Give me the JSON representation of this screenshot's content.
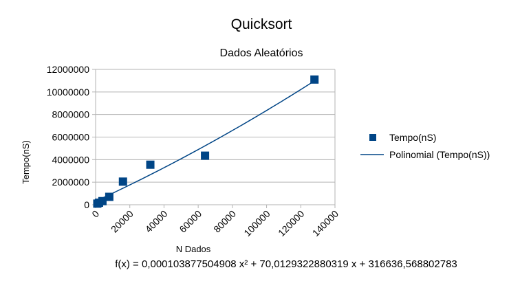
{
  "chart_data": {
    "type": "scatter",
    "title": "Quicksort",
    "subtitle": "Dados Aleatórios",
    "xlabel": "N Dados",
    "ylabel": "Tempo(nS)",
    "xlim": [
      0,
      140000
    ],
    "ylim": [
      0,
      12000000
    ],
    "x_ticks": [
      0,
      20000,
      40000,
      60000,
      80000,
      100000,
      120000,
      140000
    ],
    "y_ticks": [
      0,
      2000000,
      4000000,
      6000000,
      8000000,
      10000000,
      12000000
    ],
    "grid": "horizontal",
    "legend_position": "right",
    "series": [
      {
        "name": "Tempo(nS)",
        "marker": "square",
        "color": "#004586",
        "points": [
          {
            "x": 1000,
            "y": 100000
          },
          {
            "x": 2000,
            "y": 180000
          },
          {
            "x": 4000,
            "y": 320000
          },
          {
            "x": 8000,
            "y": 700000
          },
          {
            "x": 16000,
            "y": 2050000
          },
          {
            "x": 32000,
            "y": 3550000
          },
          {
            "x": 64000,
            "y": 4350000
          },
          {
            "x": 128000,
            "y": 11100000
          }
        ]
      }
    ],
    "trendline": {
      "name": "Polinomial (Tempo(nS))",
      "type": "polynomial",
      "coefficients": {
        "a": 0.000103877504908,
        "b": 70.0129322880319,
        "c": 316636.568802783
      },
      "x_range": [
        1000,
        128000
      ],
      "color": "#004586",
      "equation": "f(x) = 0,000103877504908 x² + 70,0129322880319 x + 316636,568802783"
    }
  }
}
